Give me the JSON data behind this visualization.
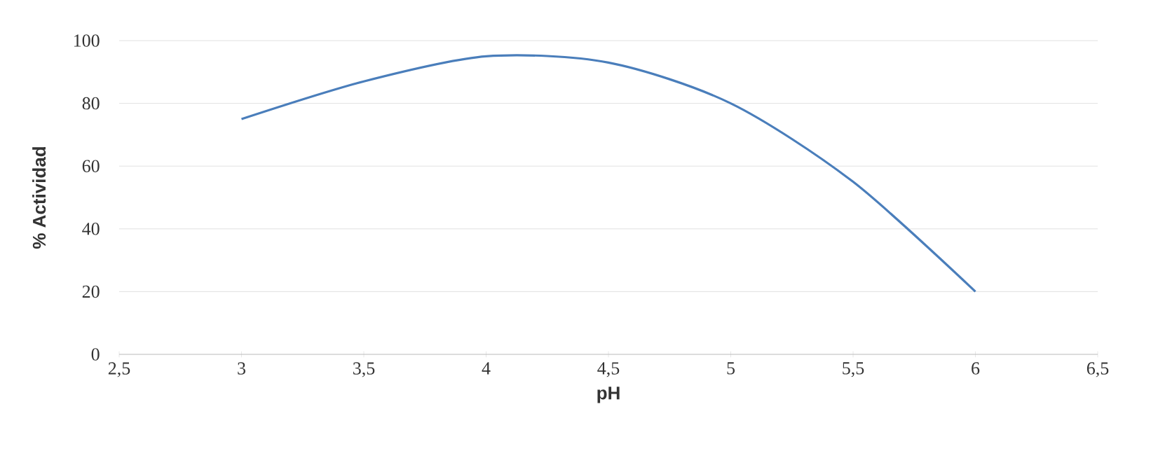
{
  "chart_data": {
    "type": "line",
    "xlabel": "pH",
    "ylabel": "% Actividad",
    "x": [
      3,
      3.5,
      4,
      4.5,
      5,
      5.5,
      6
    ],
    "series": [
      {
        "color": "#4a7ebb",
        "values": [
          75,
          87,
          95,
          93,
          80,
          55,
          20
        ]
      }
    ],
    "xlim": [
      2.5,
      6.5
    ],
    "ylim": [
      0,
      100
    ],
    "xticks": [
      {
        "value": 2.5,
        "label": "2,5"
      },
      3,
      {
        "value": 3.5,
        "label": "3,5"
      },
      4,
      {
        "value": 4.5,
        "label": "4,5"
      },
      5,
      {
        "value": 5.5,
        "label": "5,5"
      },
      6,
      {
        "value": 6.5,
        "label": "6,5"
      }
    ],
    "yticks": [
      0,
      20,
      40,
      60,
      80,
      100
    ],
    "grid": "y",
    "marker": "none",
    "line_style": "solid"
  }
}
